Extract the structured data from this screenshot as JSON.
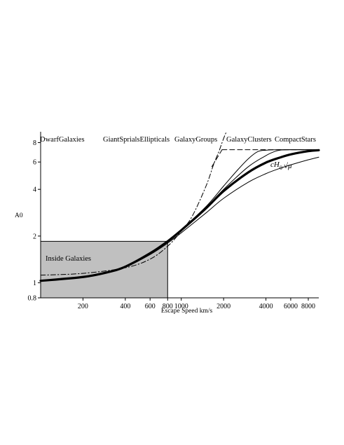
{
  "chart_data": {
    "type": "line",
    "title": "",
    "xlabel": "Escape Speed km/s",
    "ylabel": "A0",
    "xscale": "log",
    "yscale": "log",
    "xlim": [
      100,
      9500
    ],
    "ylim": [
      0.8,
      9.4
    ],
    "x_ticks": [
      200,
      400,
      600,
      800,
      1000,
      2000,
      4000,
      6000,
      8000
    ],
    "x_tick_labels": [
      "200",
      "400",
      "600",
      "800",
      "1000",
      "2000",
      "4000",
      "6000",
      "8000"
    ],
    "y_ticks": [
      0.8,
      1,
      2,
      4,
      6,
      8
    ],
    "y_tick_labels": [
      "0.8",
      "1",
      "2",
      "4",
      "6",
      "8"
    ],
    "region_labels": [
      "DwarfGalaxies",
      "GiantSprialsEllipticals",
      "GalaxyGroups",
      "GalaxyClusters",
      "CompactStars"
    ],
    "shaded_region": {
      "label": "Inside Galaxies",
      "x": [
        100,
        800
      ],
      "y": [
        0.8,
        1.85
      ],
      "color": "#c0c0c0"
    },
    "annotation": {
      "prefix": "cH",
      "subscript": "0",
      "suffix": "√μ"
    },
    "series": [
      {
        "style": "thick-solid",
        "x": [
          100,
          200,
          300,
          400,
          600,
          800,
          1000,
          1500,
          2000,
          3000,
          4000,
          5000,
          6000,
          8000,
          9500
        ],
        "y": [
          1.03,
          1.09,
          1.17,
          1.27,
          1.55,
          1.85,
          2.18,
          3.02,
          3.9,
          5.15,
          5.95,
          6.4,
          6.72,
          7.05,
          7.15
        ]
      },
      {
        "style": "thin-solid",
        "x": [
          100,
          200,
          300,
          400,
          600,
          800,
          1000,
          1500,
          2000,
          3000,
          4000,
          5000,
          6000,
          8000,
          9500
        ],
        "y": [
          1.03,
          1.09,
          1.16,
          1.26,
          1.52,
          1.8,
          2.1,
          2.82,
          3.5,
          4.45,
          5.05,
          5.45,
          5.75,
          6.2,
          6.45
        ]
      },
      {
        "style": "thin-solid",
        "x": [
          100,
          200,
          400,
          600,
          800,
          1000,
          1500,
          2000,
          2500,
          3000,
          3500,
          4000,
          5000,
          6000,
          9500
        ],
        "y": [
          1.03,
          1.09,
          1.27,
          1.55,
          1.86,
          2.2,
          3.1,
          4.2,
          5.3,
          6.3,
          7.0,
          7.15,
          7.2,
          7.2,
          7.2
        ]
      },
      {
        "style": "thin-solid",
        "x": [
          100,
          200,
          400,
          600,
          800,
          1000,
          1500,
          2000,
          3000,
          4000,
          4500,
          5000,
          6000,
          9500
        ],
        "y": [
          1.03,
          1.09,
          1.27,
          1.55,
          1.85,
          2.19,
          3.05,
          4.0,
          5.6,
          6.6,
          6.95,
          7.15,
          7.2,
          7.2
        ]
      },
      {
        "style": "dash-dot",
        "x": [
          100,
          200,
          400,
          600,
          800,
          1000,
          1200,
          1500,
          1700,
          1850,
          1950,
          2050,
          2100
        ],
        "y": [
          1.12,
          1.15,
          1.25,
          1.42,
          1.72,
          2.15,
          2.7,
          4.2,
          5.8,
          7.0,
          8.0,
          9.0,
          9.4
        ]
      },
      {
        "style": "dashed",
        "x": [
          1950,
          3600,
          9500
        ],
        "y": [
          7.2,
          7.2,
          7.2
        ]
      },
      {
        "style": "dashed",
        "x": [
          1650,
          1950
        ],
        "y": [
          5.6,
          7.2
        ]
      }
    ]
  }
}
